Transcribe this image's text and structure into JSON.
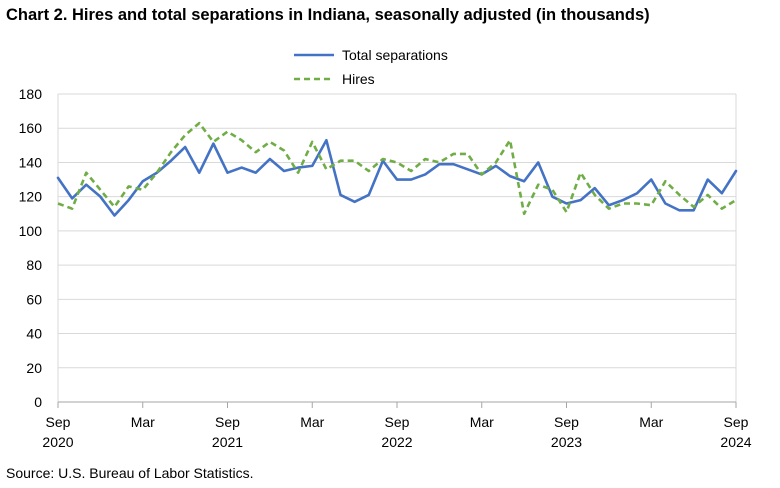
{
  "title": "Chart 2. Hires and total separations in Indiana, seasonally adjusted (in thousands)",
  "source": "Source: U.S. Bureau of Labor Statistics.",
  "colors": {
    "total_separations": "#4472C4",
    "hires": "#70AD47",
    "grid": "#d9d9d9",
    "axis": "#a6a6a6"
  },
  "chart_data": {
    "type": "line",
    "title": "Chart 2. Hires and total separations in Indiana, seasonally adjusted (in thousands)",
    "xlabel": "",
    "ylabel": "",
    "ylim": [
      0,
      180
    ],
    "yticks": [
      "0",
      "20",
      "40",
      "60",
      "80",
      "100",
      "120",
      "140",
      "160",
      "180"
    ],
    "grid": true,
    "legend_position": "top-center",
    "x_tick_labels": [
      {
        "month": "Sep",
        "year": "2020"
      },
      {
        "month": "Mar",
        "year": ""
      },
      {
        "month": "Sep",
        "year": "2021"
      },
      {
        "month": "Mar",
        "year": ""
      },
      {
        "month": "Sep",
        "year": "2022"
      },
      {
        "month": "Mar",
        "year": ""
      },
      {
        "month": "Sep",
        "year": "2023"
      },
      {
        "month": "Mar",
        "year": ""
      },
      {
        "month": "Sep",
        "year": "2024"
      }
    ],
    "x": [
      "2020-09",
      "2020-10",
      "2020-11",
      "2020-12",
      "2021-01",
      "2021-02",
      "2021-03",
      "2021-04",
      "2021-05",
      "2021-06",
      "2021-07",
      "2021-08",
      "2021-09",
      "2021-10",
      "2021-11",
      "2021-12",
      "2022-01",
      "2022-02",
      "2022-03",
      "2022-04",
      "2022-05",
      "2022-06",
      "2022-07",
      "2022-08",
      "2022-09",
      "2022-10",
      "2022-11",
      "2022-12",
      "2023-01",
      "2023-02",
      "2023-03",
      "2023-04",
      "2023-05",
      "2023-06",
      "2023-07",
      "2023-08",
      "2023-09",
      "2023-10",
      "2023-11",
      "2023-12",
      "2024-01",
      "2024-02",
      "2024-03",
      "2024-04",
      "2024-05",
      "2024-06",
      "2024-07",
      "2024-08",
      "2024-09"
    ],
    "series": [
      {
        "name": "Total separations",
        "style": "solid",
        "values": [
          131,
          119,
          127,
          120,
          109,
          118,
          129,
          134,
          141,
          149,
          134,
          151,
          134,
          137,
          134,
          142,
          135,
          137,
          138,
          153,
          121,
          117,
          121,
          141,
          130,
          130,
          133,
          139,
          139,
          136,
          133,
          138,
          132,
          129,
          140,
          120,
          116,
          118,
          125,
          115,
          118,
          122,
          130,
          116,
          112,
          112,
          130,
          122,
          135
        ]
      },
      {
        "name": "Hires",
        "style": "dashed",
        "values": [
          116,
          113,
          134,
          124,
          114,
          126,
          124,
          134,
          146,
          156,
          163,
          152,
          158,
          153,
          146,
          152,
          147,
          134,
          152,
          136,
          141,
          141,
          135,
          142,
          140,
          135,
          142,
          140,
          145,
          145,
          133,
          140,
          153,
          110,
          127,
          124,
          111,
          134,
          121,
          113,
          116,
          116,
          115,
          129,
          121,
          114,
          121,
          113,
          118
        ]
      }
    ]
  }
}
